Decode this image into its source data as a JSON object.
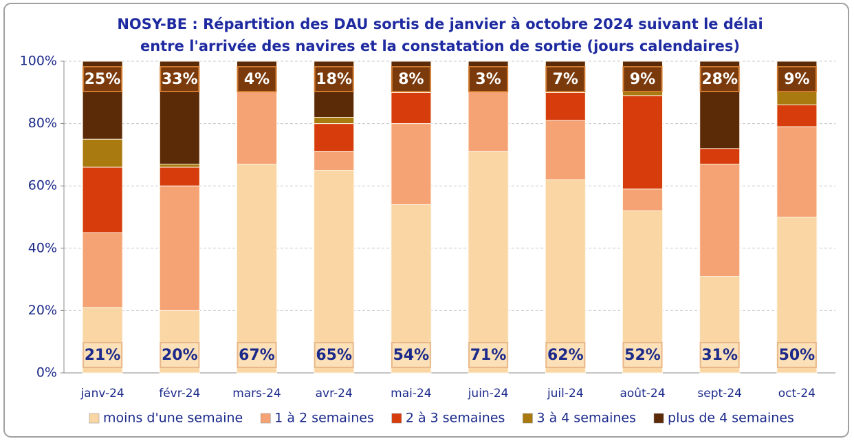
{
  "chart_data": {
    "type": "stacked_bar",
    "title": [
      "NOSY-BE : Répartition des DAU sortis de janvier à octobre 2024 suivant le délai",
      "entre l'arrivée des navires et la constatation de sortie (jours calendaires)"
    ],
    "categories": [
      "janv-24",
      "févr-24",
      "mars-24",
      "avr-24",
      "mai-24",
      "juin-24",
      "juil-24",
      "août-24",
      "sept-24",
      "oct-24"
    ],
    "series": [
      {
        "name": "moins d'une semaine",
        "color": "#f9d6a3",
        "values": [
          21,
          20,
          67,
          65,
          54,
          71,
          62,
          52,
          31,
          50
        ],
        "value_labels": [
          "21%",
          "20%",
          "67%",
          "65%",
          "54%",
          "71%",
          "62%",
          "52%",
          "31%",
          "50%"
        ]
      },
      {
        "name": "1 à 2 semaines",
        "color": "#f5a274",
        "values": [
          24,
          40,
          29,
          6,
          26,
          25,
          19,
          7,
          36,
          29
        ]
      },
      {
        "name": "2 à 3 semaines",
        "color": "#d63c0c",
        "values": [
          21,
          6,
          0,
          9,
          10,
          1,
          9,
          30,
          5,
          7
        ]
      },
      {
        "name": "3 à 4 semaines",
        "color": "#a87a10",
        "values": [
          9,
          1,
          0,
          2,
          2,
          0,
          3,
          2,
          0,
          5
        ]
      },
      {
        "name": "plus de 4 semaines",
        "color": "#5b2b08",
        "values": [
          25,
          33,
          4,
          18,
          8,
          3,
          7,
          9,
          28,
          9
        ],
        "value_labels": [
          "25%",
          "33%",
          "4%",
          "18%",
          "8%",
          "3%",
          "7%",
          "9%",
          "28%",
          "9%"
        ]
      }
    ],
    "ylim": [
      0,
      100
    ],
    "yticks": [
      {
        "value": 0,
        "label": "0%"
      },
      {
        "value": 20,
        "label": "20%"
      },
      {
        "value": 40,
        "label": "40%"
      },
      {
        "value": 60,
        "label": "60%"
      },
      {
        "value": 80,
        "label": "80%"
      },
      {
        "value": 100,
        "label": "100%"
      }
    ],
    "grid": true,
    "legend": "bottom"
  }
}
